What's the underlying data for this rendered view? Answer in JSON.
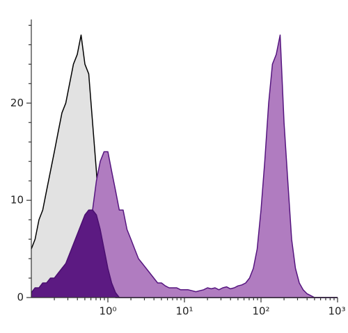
{
  "chart_data": {
    "type": "histogram-overlay",
    "x_scale": "log",
    "xlim": [
      0.1,
      1000
    ],
    "xticks": [
      {
        "value": 1,
        "label": "10⁰"
      },
      {
        "value": 10,
        "label": "10¹"
      },
      {
        "value": 100,
        "label": "10²"
      },
      {
        "value": 1000,
        "label": "10³"
      }
    ],
    "xminorticks": [
      0.2,
      0.3,
      0.4,
      0.5,
      0.6,
      0.7,
      0.8,
      0.9,
      2,
      3,
      4,
      5,
      6,
      7,
      8,
      9,
      20,
      30,
      40,
      50,
      60,
      70,
      80,
      90,
      200,
      300,
      400,
      500,
      600,
      700,
      800,
      900
    ],
    "ylim": [
      0,
      28.6
    ],
    "yticks": [
      0,
      10,
      20
    ],
    "yminorticks": [
      2,
      4,
      6,
      8,
      12,
      14,
      16,
      18,
      22,
      24,
      26,
      28
    ],
    "x": [
      0.1,
      0.112,
      0.126,
      0.141,
      0.158,
      0.178,
      0.2,
      0.224,
      0.251,
      0.282,
      0.316,
      0.355,
      0.398,
      0.447,
      0.501,
      0.562,
      0.631,
      0.708,
      0.794,
      0.891,
      1,
      1.12,
      1.26,
      1.41,
      1.58,
      1.78,
      2,
      2.24,
      2.51,
      2.82,
      3.16,
      3.55,
      3.98,
      4.47,
      5.01,
      5.62,
      6.31,
      7.08,
      7.94,
      8.91,
      10,
      11.2,
      12.6,
      14.1,
      15.8,
      17.8,
      20,
      22.4,
      25.1,
      28.2,
      31.6,
      35.5,
      39.8,
      44.7,
      50.1,
      56.2,
      63.1,
      70.8,
      79.4,
      89.1,
      100,
      112,
      126,
      141,
      158,
      178,
      200,
      224,
      251,
      282,
      316,
      355,
      398,
      447,
      501,
      562,
      631,
      708,
      794,
      891,
      1000
    ],
    "series": [
      {
        "color": "#e2e2e2",
        "line_color": "#000000",
        "values": [
          5,
          6,
          8,
          9,
          11,
          13,
          15,
          17,
          19,
          20,
          22,
          24,
          25,
          27,
          24,
          23,
          18,
          13,
          7,
          3,
          1,
          0.3,
          0,
          0,
          0,
          0,
          0,
          0,
          0,
          0,
          0,
          0,
          0,
          0,
          0,
          0,
          0,
          0,
          0,
          0,
          0,
          0,
          0,
          0,
          0,
          0,
          0,
          0,
          0,
          0,
          0,
          0,
          0,
          0,
          0,
          0,
          0,
          0,
          0,
          0,
          0,
          0,
          0,
          0,
          0,
          0,
          0,
          0,
          0,
          0,
          0,
          0,
          0,
          0,
          0,
          0,
          0,
          0,
          0,
          0,
          0
        ]
      },
      {
        "color": "#b07cc0",
        "line_color": "#55157f",
        "values": [
          0.5,
          0.8,
          1,
          1.2,
          1.5,
          1.3,
          1.5,
          2.2,
          3,
          3,
          3.5,
          4,
          5,
          6,
          7,
          8,
          9,
          12,
          14,
          15,
          15,
          13,
          11,
          9,
          9,
          7,
          6,
          5,
          4,
          3.5,
          3,
          2.5,
          2,
          1.5,
          1.5,
          1.2,
          1,
          1,
          1,
          0.8,
          0.8,
          0.8,
          0.7,
          0.6,
          0.7,
          0.8,
          1,
          0.9,
          1,
          0.8,
          1,
          1.1,
          0.9,
          1,
          1.2,
          1.3,
          1.5,
          2,
          3,
          5,
          9,
          14,
          20,
          24,
          25,
          27,
          18,
          12,
          6,
          3,
          1.5,
          0.8,
          0.4,
          0.2,
          0,
          0,
          0,
          0,
          0,
          0,
          0
        ]
      },
      {
        "color": "#5c1a82",
        "line_color": "#4a0f70",
        "values": [
          0.5,
          1,
          1,
          1.5,
          1.5,
          2,
          2,
          2.5,
          3,
          3.5,
          4.5,
          5.5,
          6.5,
          7.5,
          8.5,
          9,
          9,
          8.5,
          7,
          5,
          3,
          1.5,
          0.5,
          0,
          0,
          0,
          0,
          0,
          0,
          0,
          0,
          0,
          0,
          0,
          0,
          0,
          0,
          0,
          0,
          0,
          0,
          0,
          0,
          0,
          0,
          0,
          0,
          0,
          0,
          0,
          0,
          0,
          0,
          0,
          0,
          0,
          0,
          0,
          0,
          0,
          0,
          0,
          0,
          0,
          0,
          0,
          0,
          0,
          0,
          0,
          0,
          0,
          0,
          0,
          0,
          0,
          0,
          0,
          0,
          0,
          0
        ]
      }
    ]
  }
}
